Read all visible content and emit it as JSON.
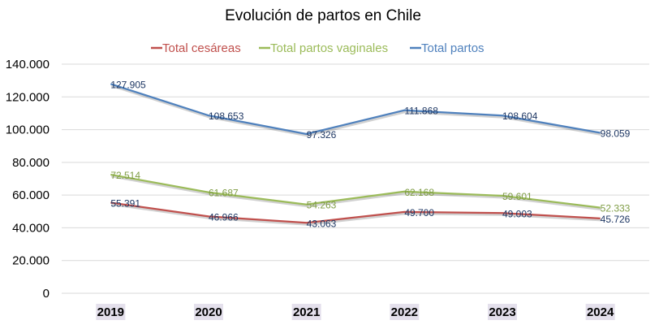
{
  "chart_data": {
    "type": "line",
    "title": "Evolución de partos en Chile",
    "xlabel": "",
    "ylabel": "",
    "categories": [
      "2019",
      "2020",
      "2021",
      "2022",
      "2023",
      "2024"
    ],
    "ylim": [
      0,
      140000
    ],
    "yticks": [
      0,
      20000,
      40000,
      60000,
      80000,
      100000,
      120000,
      140000
    ],
    "ytick_labels": [
      "0",
      "20.000",
      "40.000",
      "60.000",
      "80.000",
      "100.000",
      "120.000",
      "140.000"
    ],
    "grid": "horizontal",
    "legend_position": "top",
    "series": [
      {
        "name": "Total cesáreas",
        "color": "#c0504d",
        "values": [
          55391,
          46966,
          43063,
          49700,
          49003,
          45726
        ],
        "labels": [
          "55.391",
          "46.966",
          "43.063",
          "49.700",
          "49.003",
          "45.726"
        ]
      },
      {
        "name": "Total partos vaginales",
        "color": "#9bbb59",
        "values": [
          72514,
          61687,
          54263,
          62168,
          59601,
          52333
        ],
        "labels": [
          "72.514",
          "61.687",
          "54.263",
          "62.168",
          "59.601",
          "52.333"
        ]
      },
      {
        "name": "Total partos",
        "color": "#4f81bd",
        "values": [
          127905,
          108653,
          97326,
          111868,
          108604,
          98059
        ],
        "labels": [
          "127.905",
          "108.653",
          "97.326",
          "111.868",
          "108.604",
          "98.059"
        ]
      }
    ]
  }
}
